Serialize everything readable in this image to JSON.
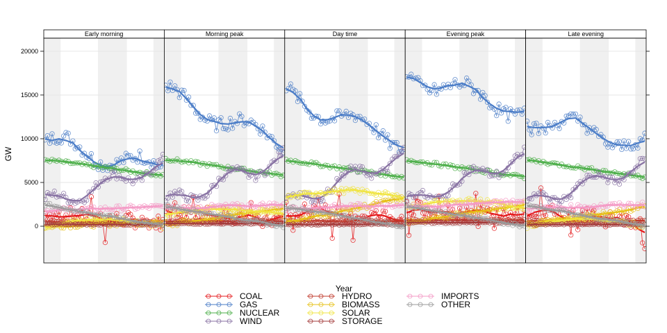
{
  "chart_data": {
    "type": "line",
    "ylabel": "GW",
    "ylim": [
      -4200,
      21500
    ],
    "yticks": [
      0,
      5000,
      10000,
      15000,
      20000
    ],
    "grid": true,
    "legend_title": "Year",
    "legend_position": "bottom",
    "panels": [
      "Early morning",
      "Morning peak",
      "Day time",
      "Evening peak",
      "Late evening"
    ],
    "x_points": 52,
    "series": [
      {
        "name": "COAL",
        "color": "#e41a1c",
        "levels": [
          1500,
          1900,
          1900,
          2000,
          1800
        ],
        "ends": [
          400,
          600,
          1000,
          1300,
          500
        ],
        "noise": 900
      },
      {
        "name": "GAS",
        "color": "#4a7cc7",
        "levels": [
          9600,
          15000,
          15000,
          17500,
          12500
        ],
        "ends": [
          6500,
          9500,
          9500,
          13000,
          9200
        ],
        "noise": 800
      },
      {
        "name": "NUCLEAR",
        "color": "#4daf4a",
        "levels": [
          7600,
          7700,
          7600,
          7600,
          7600
        ],
        "ends": [
          5800,
          5800,
          5600,
          5600,
          5600
        ],
        "noise": 200
      },
      {
        "name": "WIND",
        "color": "#8872a3",
        "levels": [
          2500,
          2500,
          2500,
          2500,
          2500
        ],
        "ends": [
          7000,
          7800,
          8000,
          8000,
          7000
        ],
        "noise": 500
      },
      {
        "name": "HYDRO",
        "color": "#c0392b",
        "levels": [
          500,
          600,
          600,
          700,
          600
        ],
        "ends": [
          500,
          600,
          600,
          700,
          600
        ],
        "noise": 100
      },
      {
        "name": "BIOMASS",
        "color": "#e6c017",
        "levels": [
          0,
          200,
          400,
          400,
          100
        ],
        "ends": [
          500,
          2000,
          3200,
          2500,
          2200
        ],
        "noise": 300
      },
      {
        "name": "SOLAR",
        "color": "#f0e442",
        "levels": [
          0,
          1000,
          3000,
          2000,
          0
        ],
        "ends": [
          0,
          1500,
          3500,
          2200,
          0
        ],
        "noise": 300
      },
      {
        "name": "STORAGE",
        "color": "#a33b3b",
        "levels": [
          200,
          300,
          200,
          400,
          200
        ],
        "ends": [
          200,
          300,
          200,
          400,
          200
        ],
        "noise": 80
      },
      {
        "name": "IMPORTS",
        "color": "#f49ac6",
        "levels": [
          1800,
          2000,
          2000,
          2200,
          2000
        ],
        "ends": [
          2200,
          2500,
          2500,
          2800,
          2500
        ],
        "noise": 300
      },
      {
        "name": "OTHER",
        "color": "#9a9a9a",
        "levels": [
          2500,
          2300,
          2200,
          2300,
          2400
        ],
        "ends": [
          0,
          0,
          0,
          0,
          0
        ],
        "noise": 200
      }
    ]
  }
}
